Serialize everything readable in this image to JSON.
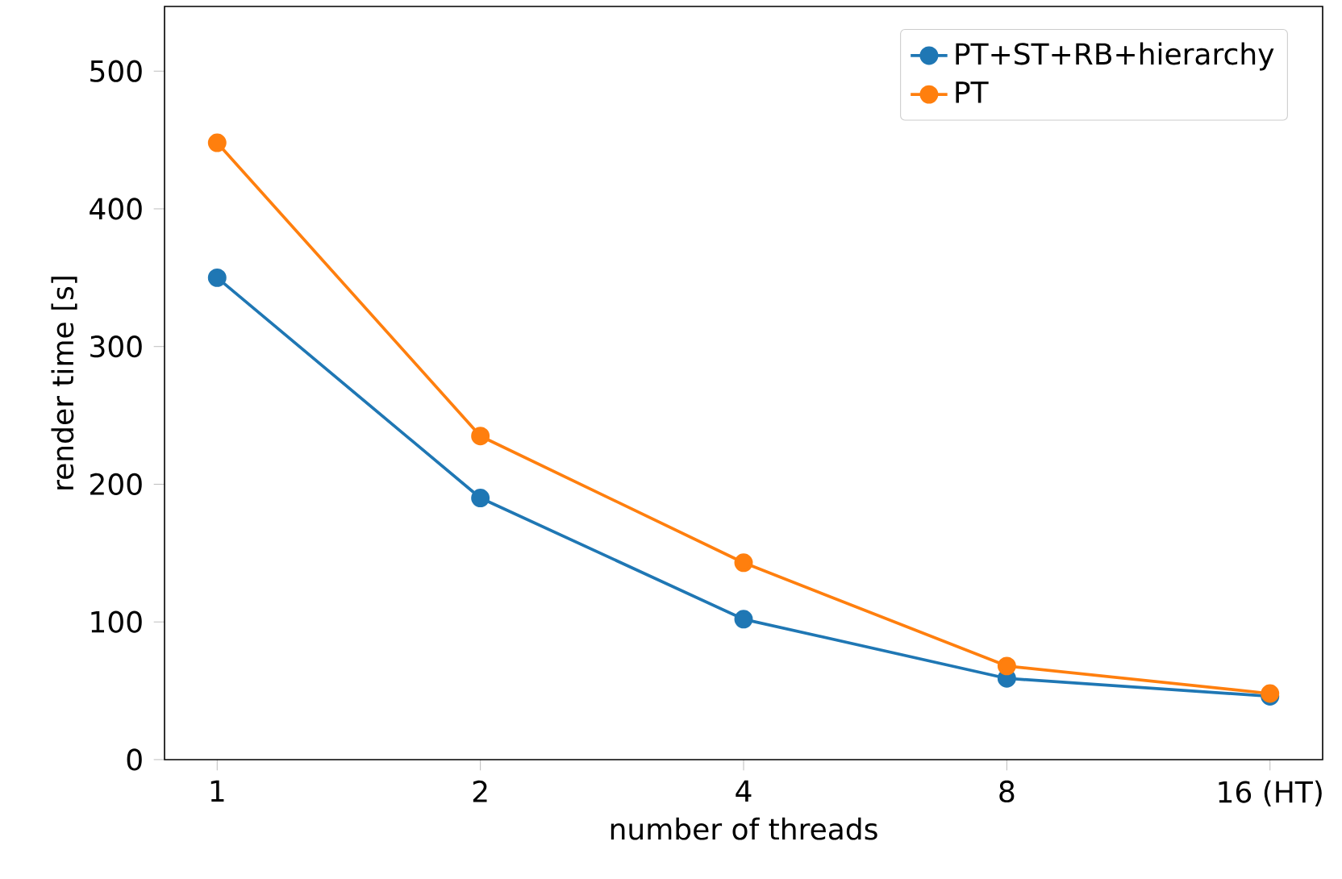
{
  "chart_data": {
    "type": "line",
    "xlabel": "number of threads",
    "ylabel": "render time [s]",
    "categories": [
      "1",
      "2",
      "4",
      "8",
      "16 (HT)"
    ],
    "series": [
      {
        "name": "PT+ST+RB+hierarchy",
        "color": "#1f77b4",
        "values": [
          350,
          190,
          102,
          59,
          46
        ]
      },
      {
        "name": "PT",
        "color": "#ff7f0e",
        "values": [
          448,
          235,
          143,
          68,
          48
        ]
      }
    ],
    "ylim": [
      0,
      547
    ],
    "yticks": [
      0,
      100,
      200,
      300,
      400,
      500
    ],
    "grid": false,
    "legend": "top right",
    "marker": "circle",
    "line_style": "solid"
  }
}
